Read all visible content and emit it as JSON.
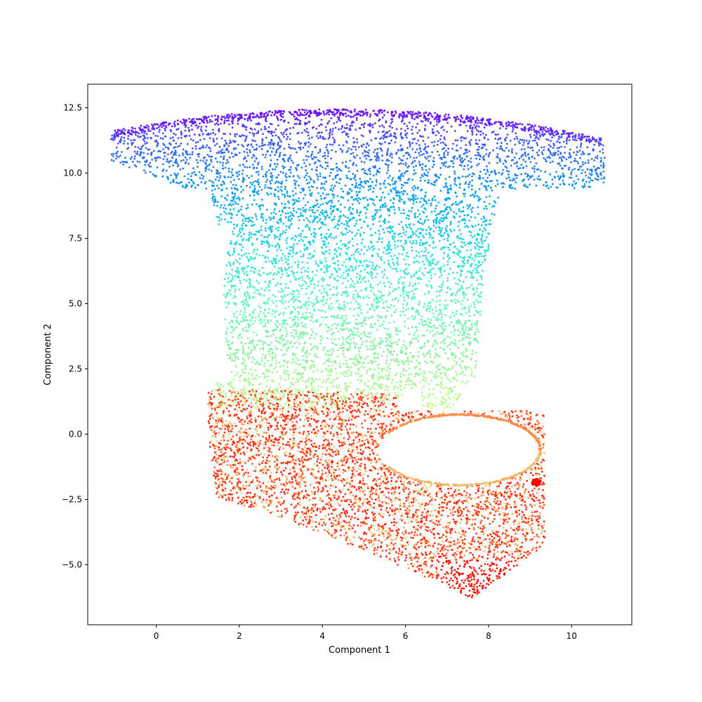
{
  "chart_data": {
    "type": "scatter",
    "title": "",
    "xlabel": "Component 1",
    "ylabel": "Component 2",
    "xlim": [
      -1.65,
      11.45
    ],
    "ylim": [
      -7.3,
      13.4
    ],
    "xticks": [
      0,
      2,
      4,
      6,
      8,
      10
    ],
    "xtick_labels": [
      "0",
      "2",
      "4",
      "6",
      "8",
      "10"
    ],
    "yticks": [
      -5.0,
      -2.5,
      0.0,
      2.5,
      5.0,
      7.5,
      10.0,
      12.5
    ],
    "ytick_labels": [
      "−5.0",
      "−2.5",
      "0.0",
      "2.5",
      "5.0",
      "7.5",
      "10.0",
      "12.5"
    ],
    "grid": false,
    "legend": "none",
    "colormap": "rainbow",
    "color_stops": [
      "#8000ff",
      "#3c5ffa",
      "#06a6ee",
      "#2adddd",
      "#5ff6bf",
      "#8ef0a0",
      "#c0ff8a",
      "#e8d07a",
      "#ffa256",
      "#ff6a37",
      "#ff3015",
      "#ff0000"
    ],
    "regions": [
      {
        "name": "upper-funnel",
        "value_range": [
          0.0,
          0.55
        ],
        "approx_points": 6500
      },
      {
        "name": "lower-bowl",
        "value_range": [
          0.55,
          1.0
        ],
        "approx_points": 4000
      }
    ],
    "extent": {
      "top_arc_y": 12.45,
      "left_tip": [
        -1.1,
        10.5
      ],
      "right_tip": [
        10.8,
        9.6
      ],
      "bottom_min_y": -6.3,
      "right_bowl_tip": [
        9.3,
        -1.8
      ]
    }
  }
}
